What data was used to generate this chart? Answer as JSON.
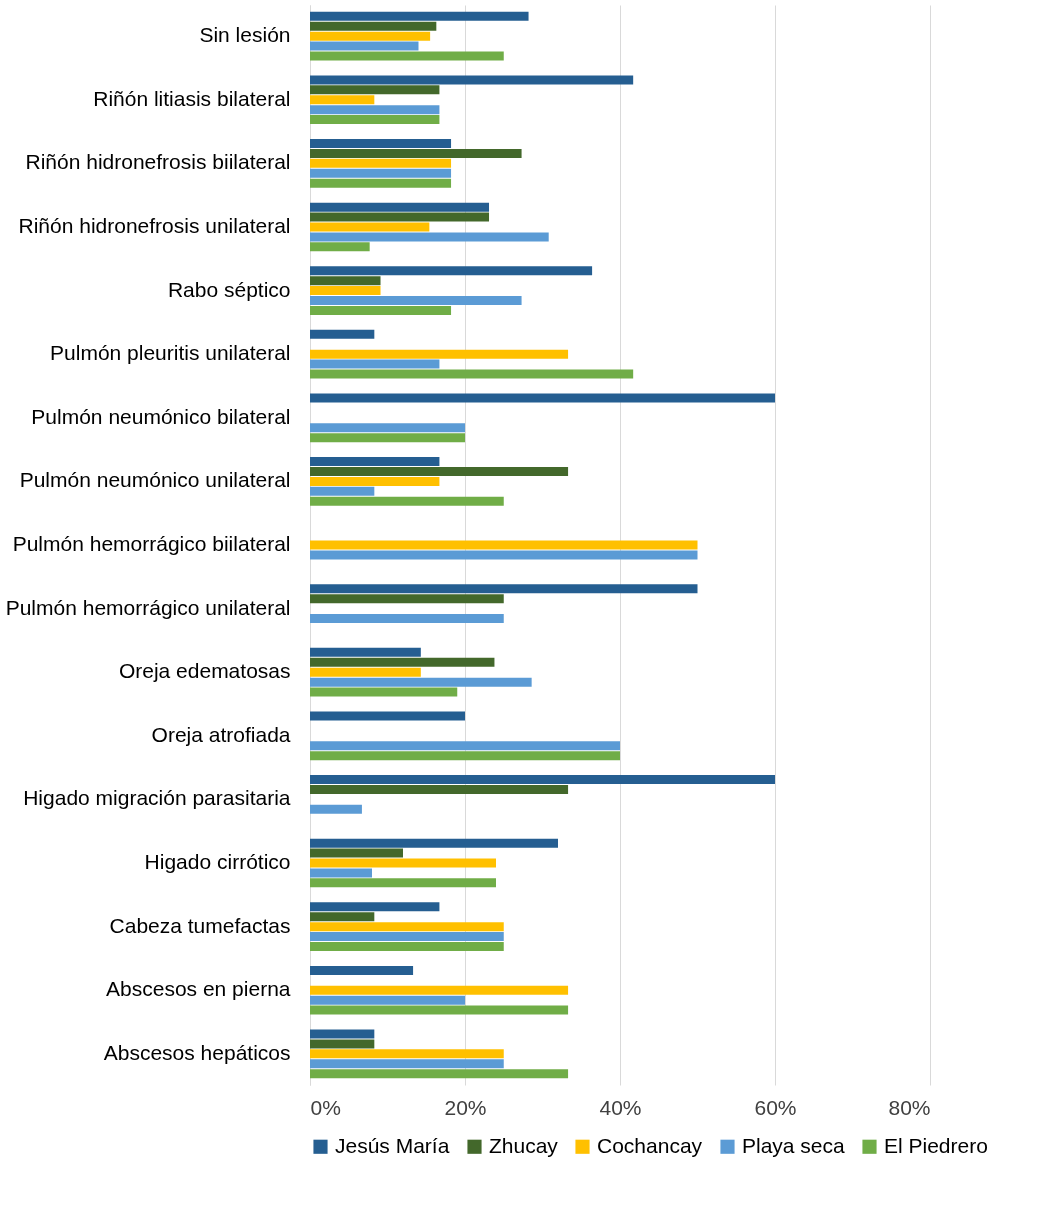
{
  "chart_data": {
    "type": "bar",
    "orientation": "horizontal",
    "categories": [
      "Sin lesión",
      "Riñón litiasis bilateral",
      "Riñón hidronefrosis biilateral",
      "Riñón hidronefrosis unilateral",
      "Rabo séptico",
      "Pulmón pleuritis unilateral",
      "Pulmón neumónico bilateral",
      "Pulmón neumónico unilateral",
      "Pulmón hemorrágico biilateral",
      "Pulmón hemorrágico unilateral",
      "Oreja edematosas",
      "Oreja atrofiada",
      "Higado migración parasitaria",
      "Higado cirrótico",
      "Cabeza tumefactas",
      "Abscesos en pierna",
      "Abscesos hepáticos"
    ],
    "series": [
      {
        "name": "Jesús María",
        "color": "#255e91",
        "values": [
          28.2,
          41.7,
          18.2,
          23.1,
          36.4,
          8.3,
          60,
          16.7,
          0,
          50,
          14.3,
          20,
          60,
          32,
          16.7,
          13.3,
          8.3
        ]
      },
      {
        "name": "Zhucay",
        "color": "#43682b",
        "values": [
          16.3,
          16.7,
          27.3,
          23.1,
          9.1,
          0,
          0,
          33.3,
          0,
          25,
          23.8,
          0,
          33.3,
          12,
          8.3,
          0,
          8.3
        ]
      },
      {
        "name": "Cochancay",
        "color": "#ffc000",
        "values": [
          15.5,
          8.3,
          18.2,
          15.4,
          9.1,
          33.3,
          0,
          16.7,
          50,
          0,
          14.3,
          0,
          0,
          24,
          25,
          33.3,
          25
        ]
      },
      {
        "name": "Playa seca",
        "color": "#5b9bd5",
        "values": [
          14,
          16.7,
          18.2,
          30.8,
          27.3,
          16.7,
          20,
          8.3,
          50,
          25,
          28.6,
          40,
          6.7,
          8,
          25,
          20,
          25
        ]
      },
      {
        "name": "El Piedrero",
        "color": "#70ad47",
        "values": [
          25,
          16.7,
          18.2,
          7.7,
          18.2,
          41.7,
          20,
          25,
          0,
          0,
          19,
          40,
          0,
          24,
          25,
          33.3,
          33.3
        ]
      }
    ],
    "xlim": [
      0,
      80
    ],
    "xticks": [
      {
        "value": 0,
        "label": "0%"
      },
      {
        "value": 20,
        "label": "20%"
      },
      {
        "value": 40,
        "label": "40%"
      },
      {
        "value": 60,
        "label": "60%"
      },
      {
        "value": 80,
        "label": "80%"
      }
    ],
    "grid": "x",
    "legend": "bottom"
  }
}
